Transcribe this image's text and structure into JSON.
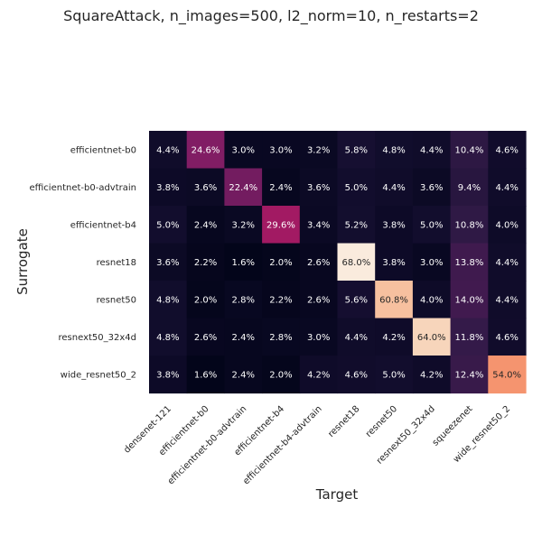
{
  "chart_data": {
    "type": "heatmap",
    "title": "SquareAttack, n_images=500, l2_norm=10, n_restarts=2",
    "xlabel": "Target",
    "ylabel": "Surrogate",
    "x_categories": [
      "densenet-121",
      "efficientnet-b0",
      "efficientnet-b0-advtrain",
      "efficientnet-b4",
      "efficientnet-b4-advtrain",
      "resnet18",
      "resnet50",
      "resnext50_32x4d",
      "squeezenet",
      "wide_resnet50_2"
    ],
    "y_categories": [
      "efficientnet-b0",
      "efficientnet-b0-advtrain",
      "efficientnet-b4",
      "resnet18",
      "resnet50",
      "resnext50_32x4d",
      "wide_resnet50_2"
    ],
    "values": [
      [
        4.4,
        24.6,
        3.0,
        3.0,
        3.2,
        5.8,
        4.8,
        4.4,
        10.4,
        4.6
      ],
      [
        3.8,
        3.6,
        22.4,
        2.4,
        3.6,
        5.0,
        4.4,
        3.6,
        9.4,
        4.4
      ],
      [
        5.0,
        2.4,
        3.2,
        29.6,
        3.4,
        5.2,
        3.8,
        5.0,
        10.8,
        4.0
      ],
      [
        3.6,
        2.2,
        1.6,
        2.0,
        2.6,
        68.0,
        3.8,
        3.0,
        13.8,
        4.4
      ],
      [
        4.8,
        2.0,
        2.8,
        2.2,
        2.6,
        5.6,
        60.8,
        4.0,
        14.0,
        4.4
      ],
      [
        4.8,
        2.6,
        2.4,
        2.8,
        3.0,
        4.4,
        4.2,
        64.0,
        11.8,
        4.6
      ],
      [
        3.8,
        1.6,
        2.4,
        2.0,
        4.2,
        4.6,
        5.0,
        4.2,
        12.4,
        54.0
      ]
    ],
    "value_suffix": "%",
    "colormap": "rocket",
    "colorbar": false,
    "grid": false
  }
}
